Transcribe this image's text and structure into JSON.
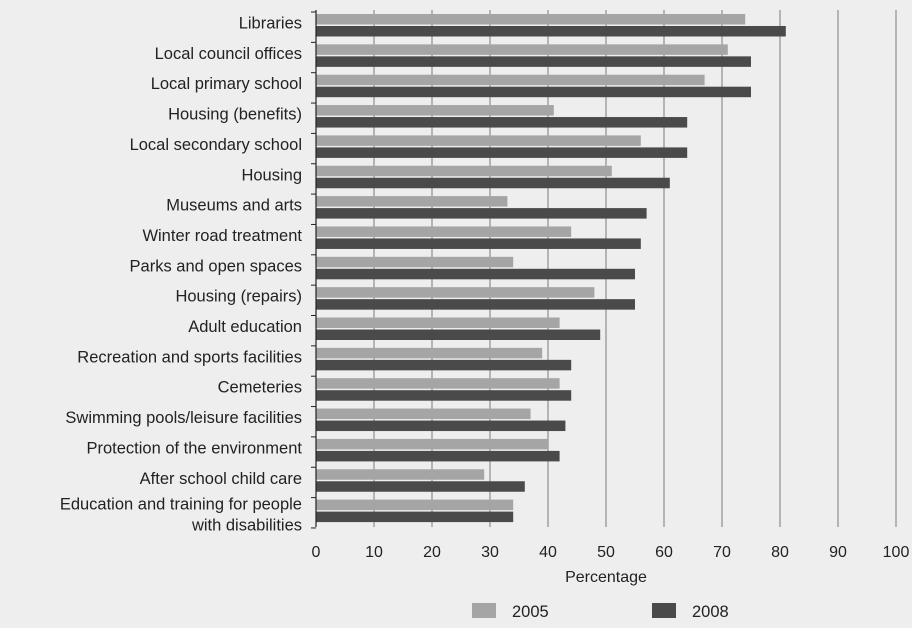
{
  "chart_data": {
    "type": "bar",
    "orientation": "horizontal",
    "categories": [
      [
        "Libraries"
      ],
      [
        "Local council offices"
      ],
      [
        "Local primary school"
      ],
      [
        "Housing (benefits)"
      ],
      [
        "Local secondary school"
      ],
      [
        "Housing"
      ],
      [
        "Museums and arts"
      ],
      [
        "Winter road treatment"
      ],
      [
        "Parks and open spaces"
      ],
      [
        "Housing (repairs)"
      ],
      [
        "Adult education"
      ],
      [
        "Recreation and sports facilities"
      ],
      [
        "Cemeteries"
      ],
      [
        "Swimming pools/leisure facilities"
      ],
      [
        "Protection of the environment"
      ],
      [
        "After school child care"
      ],
      [
        "Education and training for people",
        "with disabilities"
      ]
    ],
    "series": [
      {
        "name": "2005",
        "color": "#a5a5a5",
        "values": [
          74,
          71,
          67,
          41,
          56,
          51,
          33,
          44,
          34,
          48,
          42,
          39,
          42,
          37,
          40,
          29,
          34
        ]
      },
      {
        "name": "2008",
        "color": "#4a4a4a",
        "values": [
          81,
          75,
          75,
          64,
          64,
          61,
          57,
          56,
          55,
          55,
          49,
          44,
          44,
          43,
          42,
          36,
          34
        ]
      }
    ],
    "xlabel": "Percentage",
    "ylabel": "",
    "title": "",
    "xlim": [
      0,
      100
    ],
    "xticks": [
      "0",
      "10",
      "20",
      "30",
      "40",
      "50",
      "60",
      "70",
      "80",
      "90",
      "100"
    ],
    "grid": "vertical",
    "legend": "bottom",
    "colors": {
      "background": "#eeeeef",
      "gridline": "#7a7a7a",
      "axis": "#222222",
      "text": "#222222"
    }
  }
}
